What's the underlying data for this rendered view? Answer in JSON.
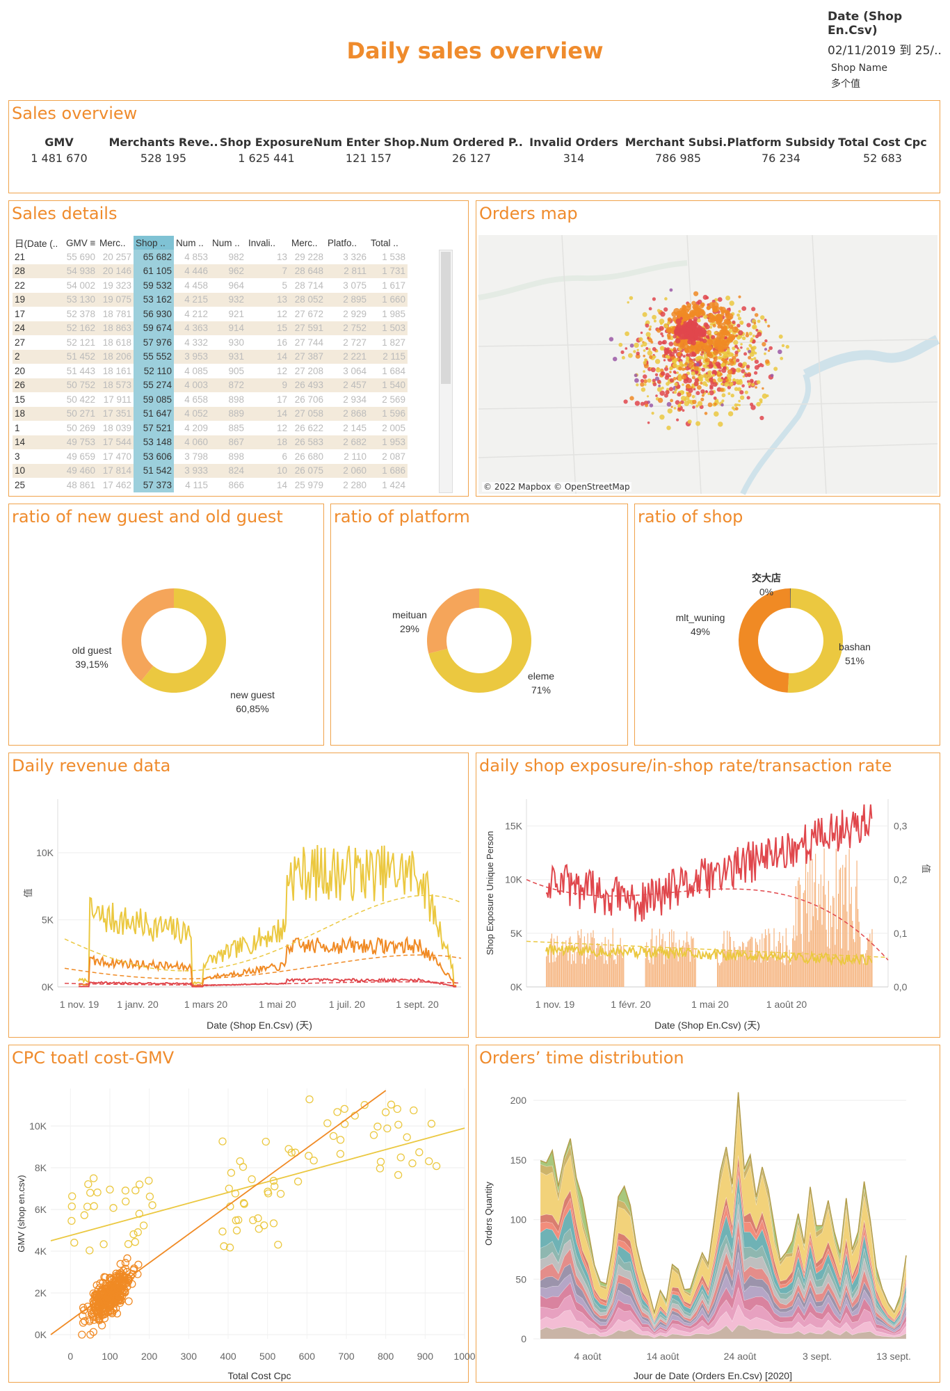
{
  "header": {
    "title": "Daily sales overview",
    "date_filter_label": "Date (Shop En.Csv)",
    "date_filter_value": "02/11/2019 到 25/..",
    "shop_filter_label": "Shop Name",
    "shop_filter_value": "多个值"
  },
  "sales_overview": {
    "title": "Sales overview",
    "kpis": [
      {
        "label": "GMV",
        "value": "1 481 670"
      },
      {
        "label": "Merchants Reve..",
        "value": "528 195"
      },
      {
        "label": "Shop Exposure",
        "value": "1 625 441"
      },
      {
        "label": "Num Enter Shop..",
        "value": "121 157"
      },
      {
        "label": "Num Ordered P..",
        "value": "26 127"
      },
      {
        "label": "Invalid Orders",
        "value": "314"
      },
      {
        "label": "Merchant Subsi..",
        "value": "786 985"
      },
      {
        "label": "Platform Subsidy",
        "value": "76 234"
      },
      {
        "label": "Total Cost Cpc",
        "value": "52 683"
      }
    ]
  },
  "sales_details": {
    "title": "Sales details",
    "columns": [
      "日(Date (..",
      "GMV",
      "Merc..",
      "Shop ..",
      "Num ..",
      "Num ..",
      "Invali..",
      "Merc..",
      "Platfo..",
      "Total .."
    ],
    "rows": [
      [
        "21",
        "55 690",
        "20 257",
        "65 682",
        "4 853",
        "982",
        "13",
        "29 228",
        "3 326",
        "1 538"
      ],
      [
        "28",
        "54 938",
        "20 146",
        "61 105",
        "4 446",
        "962",
        "7",
        "28 648",
        "2 811",
        "1 731"
      ],
      [
        "22",
        "54 002",
        "19 323",
        "59 532",
        "4 458",
        "964",
        "5",
        "28 714",
        "3 075",
        "1 617"
      ],
      [
        "19",
        "53 130",
        "19 075",
        "53 162",
        "4 215",
        "932",
        "13",
        "28 052",
        "2 895",
        "1 660"
      ],
      [
        "17",
        "52 378",
        "18 781",
        "56 930",
        "4 212",
        "921",
        "12",
        "27 672",
        "2 929",
        "1 985"
      ],
      [
        "24",
        "52 162",
        "18 863",
        "59 674",
        "4 363",
        "914",
        "15",
        "27 591",
        "2 752",
        "1 503"
      ],
      [
        "27",
        "52 121",
        "18 618",
        "57 976",
        "4 332",
        "930",
        "16",
        "27 744",
        "2 727",
        "1 827"
      ],
      [
        "2",
        "51 452",
        "18 206",
        "55 552",
        "3 953",
        "931",
        "14",
        "27 387",
        "2 221",
        "2 115"
      ],
      [
        "20",
        "51 443",
        "18 161",
        "52 110",
        "4 085",
        "905",
        "12",
        "27 208",
        "3 064",
        "1 684"
      ],
      [
        "26",
        "50 752",
        "18 573",
        "55 274",
        "4 003",
        "872",
        "9",
        "26 493",
        "2 457",
        "1 540"
      ],
      [
        "15",
        "50 422",
        "17 911",
        "59 085",
        "4 658",
        "898",
        "17",
        "26 706",
        "2 934",
        "2 569"
      ],
      [
        "18",
        "50 271",
        "17 351",
        "51 647",
        "4 052",
        "889",
        "14",
        "27 058",
        "2 868",
        "1 596"
      ],
      [
        "1",
        "50 269",
        "18 039",
        "57 521",
        "4 209",
        "885",
        "12",
        "26 622",
        "2 145",
        "2 005"
      ],
      [
        "14",
        "49 753",
        "17 544",
        "53 148",
        "4 060",
        "867",
        "18",
        "26 583",
        "2 682",
        "1 953"
      ],
      [
        "3",
        "49 659",
        "17 470",
        "53 606",
        "3 798",
        "898",
        "6",
        "26 680",
        "2 110",
        "2 087"
      ],
      [
        "10",
        "49 460",
        "17 814",
        "51 542",
        "3 933",
        "824",
        "10",
        "26 075",
        "2 060",
        "1 686"
      ],
      [
        "25",
        "48 861",
        "17 462",
        "57 373",
        "4 115",
        "866",
        "14",
        "25 979",
        "2 280",
        "1 424"
      ]
    ]
  },
  "orders_map": {
    "title": "Orders map",
    "attribution": "© 2022 Mapbox © OpenStreetMap"
  },
  "colors": {
    "accent": "#ef8b2c",
    "yellow": "#ebc840",
    "orange": "#f08a24",
    "red": "#e0474c",
    "light_orange": "#f5a55a",
    "purple": "#9b59a6"
  },
  "chart_data": [
    {
      "id": "guest",
      "type": "pie",
      "title": "ratio of new guest and old guest",
      "slices": [
        {
          "label": "old guest",
          "value": 39.15,
          "text": "39,15%"
        },
        {
          "label": "new guest",
          "value": 60.85,
          "text": "60,85%"
        }
      ]
    },
    {
      "id": "platform",
      "type": "pie",
      "title": "ratio of platform",
      "slices": [
        {
          "label": "meituan",
          "value": 29,
          "text": "29%"
        },
        {
          "label": "eleme",
          "value": 71,
          "text": "71%"
        }
      ]
    },
    {
      "id": "shop",
      "type": "pie",
      "title": "ratio of shop",
      "slices": [
        {
          "label": "交大店",
          "value": 0.2,
          "text": "0%"
        },
        {
          "label": "mlt_wuning",
          "value": 49,
          "text": "49%"
        },
        {
          "label": "bashan",
          "value": 51,
          "text": "51%"
        }
      ]
    },
    {
      "id": "revenue",
      "type": "line",
      "title": "Daily revenue data",
      "xlabel": "Date (Shop En.Csv) (天)",
      "ylabel": "值",
      "x_ticks": [
        "1 nov. 19",
        "1 janv. 20",
        "1 mars 20",
        "1 mai 20",
        "1 juil. 20",
        "1 sept. 20"
      ],
      "y_ticks": [
        "0K",
        "5K",
        "10K"
      ],
      "ylim": [
        0,
        14000
      ]
    },
    {
      "id": "exposure",
      "type": "line",
      "title": "daily shop exposure/in-shop rate/transaction rate",
      "xlabel": "Date (Shop En.Csv) (天)",
      "ylabel": "Shop Exposure Unique Person",
      "ylabel_right": "值",
      "x_ticks": [
        "1 nov. 19",
        "1 févr. 20",
        "1 mai 20",
        "1 août 20"
      ],
      "y_ticks": [
        "0K",
        "5K",
        "10K",
        "15K"
      ],
      "y_ticks_right": [
        "0,0",
        "0,1",
        "0,2",
        "0,3"
      ],
      "ylim": [
        0,
        17500
      ],
      "ylim_right": [
        0,
        0.35
      ]
    },
    {
      "id": "cpc",
      "type": "scatter",
      "title": "CPC toatl cost-GMV",
      "xlabel": "Total Cost Cpc",
      "ylabel": "GMV (shop en.csv)",
      "x_ticks": [
        "0",
        "100",
        "200",
        "300",
        "400",
        "500",
        "600",
        "700",
        "800",
        "900",
        "1000"
      ],
      "y_ticks": [
        "0K",
        "2K",
        "4K",
        "6K",
        "8K",
        "10K"
      ],
      "xlim": [
        -50,
        1000
      ],
      "ylim": [
        -200,
        11800
      ]
    },
    {
      "id": "timedist",
      "type": "area",
      "title": "Orders’ time distribution",
      "xlabel": "Jour de Date (Orders En.Csv) [2020]",
      "ylabel": "Orders Quantity",
      "x_ticks": [
        "4 août",
        "14 août",
        "24 août",
        "3 sept.",
        "13 sept."
      ],
      "y_ticks": [
        "0",
        "50",
        "100",
        "150",
        "200"
      ],
      "ylim": [
        0,
        210
      ]
    }
  ]
}
